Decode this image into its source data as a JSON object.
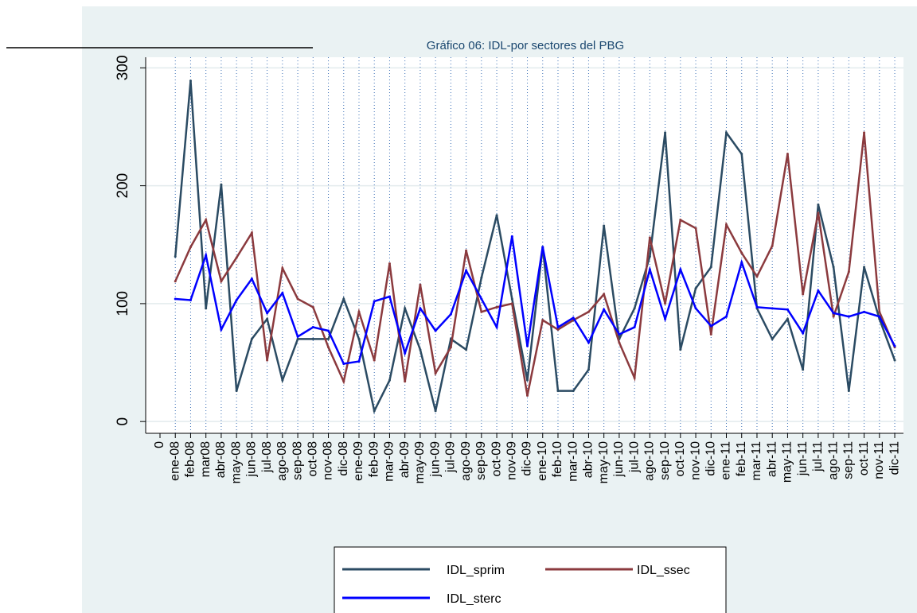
{
  "chart_data": {
    "type": "line",
    "title": "Gráfico 06: IDL-por sectores del PBG",
    "categories": [
      "0",
      "ene-08",
      "feb-08",
      "mar08",
      "abr-08",
      "may-08",
      "jun-08",
      "jul-08",
      "ago-08",
      "sep-08",
      "oct-08",
      "nov-08",
      "dic-08",
      "ene-09",
      "feb-09",
      "mar-09",
      "abr-09",
      "may-09",
      "jun-09",
      "jul-09",
      "ago-09",
      "sep-09",
      "oct-09",
      "nov-09",
      "dic-09",
      "ene-10",
      "feb-10",
      "mar-10",
      "abr-10",
      "may-10",
      "jun-10",
      "jul-10",
      "ago-10",
      "sep-10",
      "oct-10",
      "nov-10",
      "dic-10",
      "ene-11",
      "feb-11",
      "mar-11",
      "abr-11",
      "may-11",
      "jun-11",
      "jul-11",
      "ago-11",
      "sep-11",
      "oct-11",
      "nov-11",
      "dic-11"
    ],
    "series": [
      {
        "name": "IDL_sprim",
        "color": "#2b4b63",
        "values": [
          null,
          140,
          289,
          96,
          201,
          26,
          70,
          87,
          35,
          70,
          70,
          70,
          104,
          70,
          9,
          35,
          96,
          61,
          9,
          70,
          61,
          122,
          175,
          104,
          35,
          148,
          26,
          26,
          44,
          166,
          70,
          96,
          140,
          245,
          61,
          113,
          131,
          245,
          227,
          96,
          70,
          87,
          44,
          184,
          131,
          26,
          131,
          87,
          52
        ]
      },
      {
        "name": "IDL_ssec",
        "color": "#8b3a3e",
        "values": [
          null,
          119,
          148,
          171,
          119,
          139,
          160,
          52,
          130,
          104,
          97,
          63,
          34,
          93,
          52,
          134,
          34,
          116,
          41,
          63,
          145,
          93,
          97,
          100,
          22,
          86,
          78,
          86,
          93,
          108,
          67,
          37,
          156,
          100,
          171,
          164,
          74,
          167,
          143,
          123,
          149,
          227,
          108,
          177,
          89,
          127,
          245,
          93,
          63
        ]
      },
      {
        "name": "IDL_sterc",
        "color": "#0000ff",
        "values": [
          null,
          104,
          103,
          141,
          78,
          103,
          121,
          92,
          109,
          72,
          80,
          77,
          49,
          51,
          102,
          106,
          58,
          96,
          77,
          91,
          128,
          104,
          80,
          157,
          64,
          148,
          80,
          88,
          67,
          95,
          74,
          80,
          129,
          87,
          129,
          96,
          81,
          89,
          135,
          97,
          96,
          95,
          75,
          111,
          92,
          89,
          93,
          89,
          64
        ]
      }
    ],
    "ylim": [
      -10,
      309
    ],
    "yticks": [
      0,
      100,
      200,
      300
    ],
    "grid": true
  }
}
